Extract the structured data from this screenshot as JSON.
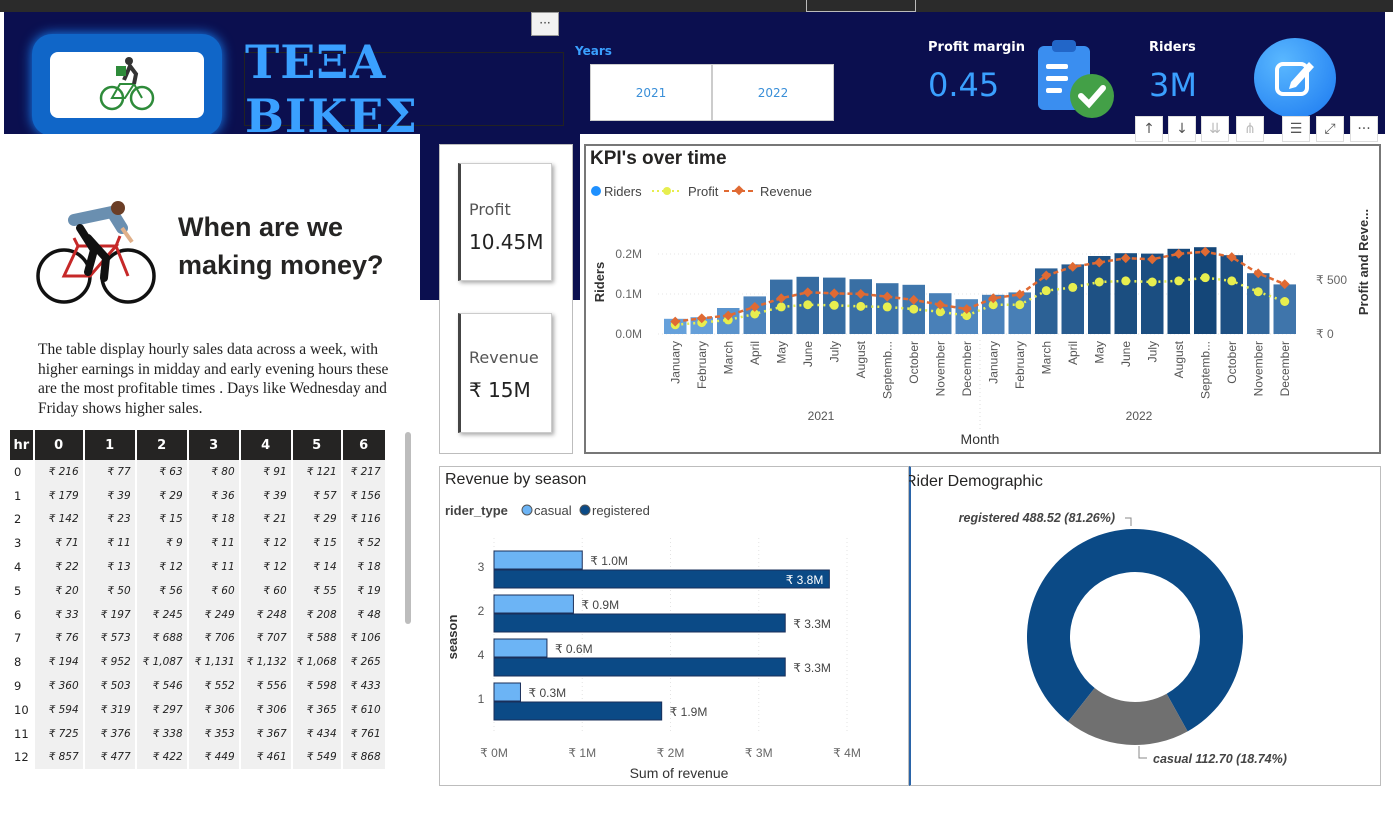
{
  "header": {
    "title": "ΤΕΞΑ ΒΙΚΕΣ",
    "more_label": "···",
    "years_label": "Years",
    "years": [
      "2021",
      "2022"
    ],
    "profit_margin_label": "Profit margin",
    "profit_margin_value": "0.45",
    "riders_label": "Riders",
    "riders_value": "3M",
    "icons": [
      "clipboard-check-icon",
      "edit-icon"
    ]
  },
  "toolbar": {
    "buttons": [
      "arrow-up-icon",
      "arrow-down-icon",
      "double-arrow-down-icon",
      "expand-hierarchy-icon",
      "filter-icon",
      "focus-mode-icon",
      "more-options-icon"
    ],
    "more_label": "···"
  },
  "left_panel": {
    "title_line1": "When are we",
    "title_line2": "making money?",
    "description": "The table display hourly sales data across a week, with higher earnings in midday and early evening hours these are the most profitable times . Days like Wednesday and Friday shows higher sales."
  },
  "hourly_table": {
    "headers": [
      "hr",
      "0",
      "1",
      "2",
      "3",
      "4",
      "5",
      "6"
    ],
    "rows": [
      [
        "0",
        "₹ 216",
        "₹ 77",
        "₹ 63",
        "₹ 80",
        "₹ 91",
        "₹ 121",
        "₹ 217"
      ],
      [
        "1",
        "₹ 179",
        "₹ 39",
        "₹ 29",
        "₹ 36",
        "₹ 39",
        "₹ 57",
        "₹ 156"
      ],
      [
        "2",
        "₹ 142",
        "₹ 23",
        "₹ 15",
        "₹ 18",
        "₹ 21",
        "₹ 29",
        "₹ 116"
      ],
      [
        "3",
        "₹ 71",
        "₹ 11",
        "₹ 9",
        "₹ 11",
        "₹ 12",
        "₹ 15",
        "₹ 52"
      ],
      [
        "4",
        "₹ 22",
        "₹ 13",
        "₹ 12",
        "₹ 11",
        "₹ 12",
        "₹ 14",
        "₹ 18"
      ],
      [
        "5",
        "₹ 20",
        "₹ 50",
        "₹ 56",
        "₹ 60",
        "₹ 60",
        "₹ 55",
        "₹ 19"
      ],
      [
        "6",
        "₹ 33",
        "₹ 197",
        "₹ 245",
        "₹ 249",
        "₹ 248",
        "₹ 208",
        "₹ 48"
      ],
      [
        "7",
        "₹ 76",
        "₹ 573",
        "₹ 688",
        "₹ 706",
        "₹ 707",
        "₹ 588",
        "₹ 106"
      ],
      [
        "8",
        "₹ 194",
        "₹ 952",
        "₹ 1,087",
        "₹ 1,131",
        "₹ 1,132",
        "₹ 1,068",
        "₹ 265"
      ],
      [
        "9",
        "₹ 360",
        "₹ 503",
        "₹ 546",
        "₹ 552",
        "₹ 556",
        "₹ 598",
        "₹ 433"
      ],
      [
        "10",
        "₹ 594",
        "₹ 319",
        "₹ 297",
        "₹ 306",
        "₹ 306",
        "₹ 365",
        "₹ 610"
      ],
      [
        "11",
        "₹ 725",
        "₹ 376",
        "₹ 338",
        "₹ 353",
        "₹ 367",
        "₹ 434",
        "₹ 761"
      ],
      [
        "12",
        "₹ 857",
        "₹ 477",
        "₹ 422",
        "₹ 449",
        "₹ 461",
        "₹ 549",
        "₹ 868"
      ]
    ]
  },
  "cards": {
    "profit_label": "Profit",
    "profit_value": "10.45M",
    "revenue_label": "Revenue",
    "revenue_value": "₹ 15M"
  },
  "chart_data": [
    {
      "type": "bar",
      "title": "KPI's over time",
      "legend": [
        "Riders",
        "Profit",
        "Revenue"
      ],
      "legend_position": "top-left",
      "xlabel": "Month",
      "ylabel": "Riders",
      "y2label": "Profit and Reve...",
      "y_ticks": [
        "0.0M",
        "0.1M",
        "0.2M"
      ],
      "y2_ticks": [
        "₹ 0",
        "₹ 500"
      ],
      "ylim": [
        0,
        0.26
      ],
      "y2lim": [
        0,
        960
      ],
      "months": [
        "January",
        "February",
        "March",
        "April",
        "May",
        "June",
        "July",
        "August",
        "Septemb...",
        "October",
        "November",
        "December",
        "January",
        "February",
        "March",
        "April",
        "May",
        "June",
        "July",
        "August",
        "Septemb...",
        "October",
        "November",
        "December"
      ],
      "year_groups": [
        "2021",
        "2022"
      ],
      "series": [
        {
          "name": "Riders",
          "values": [
            0.038,
            0.042,
            0.065,
            0.094,
            0.136,
            0.143,
            0.141,
            0.137,
            0.127,
            0.123,
            0.102,
            0.087,
            0.098,
            0.104,
            0.164,
            0.174,
            0.195,
            0.202,
            0.201,
            0.213,
            0.217,
            0.197,
            0.152,
            0.124
          ],
          "color": "#1f5fa3"
        },
        {
          "name": "Profit",
          "values": [
            85,
            105,
            130,
            185,
            250,
            270,
            265,
            255,
            250,
            230,
            205,
            170,
            270,
            270,
            400,
            430,
            480,
            490,
            480,
            490,
            520,
            490,
            390,
            300
          ],
          "color": "#e7ee4f"
        },
        {
          "name": "Revenue",
          "values": [
            115,
            145,
            170,
            250,
            330,
            385,
            375,
            370,
            345,
            315,
            270,
            230,
            330,
            365,
            540,
            620,
            660,
            700,
            690,
            740,
            760,
            710,
            560,
            460
          ],
          "color": "#e06a33"
        }
      ]
    },
    {
      "type": "bar",
      "title": "Revenue by season",
      "legend_title": "rider_type",
      "legend": [
        "casual",
        "registered"
      ],
      "ylabel": "season",
      "xlabel": "Sum of revenue",
      "x_ticks": [
        "₹ 0M",
        "₹ 1M",
        "₹ 2M",
        "₹ 3M",
        "₹ 4M"
      ],
      "xlim": [
        0,
        4
      ],
      "categories": [
        "3",
        "2",
        "4",
        "1"
      ],
      "series": [
        {
          "name": "casual",
          "values": [
            1.0,
            0.9,
            0.6,
            0.3
          ],
          "labels": [
            "₹ 1.0M",
            "₹ 0.9M",
            "₹ 0.6M",
            "₹ 0.3M"
          ],
          "color": "#6cb4f5"
        },
        {
          "name": "registered",
          "values": [
            3.8,
            3.3,
            3.3,
            1.9
          ],
          "labels": [
            "₹ 3.8M",
            "₹ 3.3M",
            "₹ 3.3M",
            "₹ 1.9M"
          ],
          "color": "#0b4a86"
        }
      ]
    },
    {
      "type": "pie",
      "title": "Rider Demographic",
      "slices": [
        {
          "name": "registered",
          "value": 488.52,
          "percent": 81.26,
          "label": "registered 488.52 (81.26%)",
          "color": "#0b4a86"
        },
        {
          "name": "casual",
          "value": 112.7,
          "percent": 18.74,
          "label": "casual 112.70 (18.74%)",
          "color": "#707070"
        }
      ]
    }
  ]
}
